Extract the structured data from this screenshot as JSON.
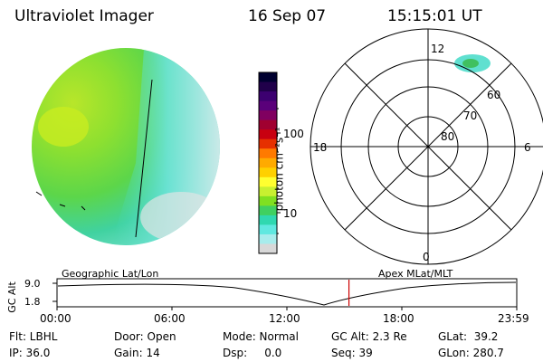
{
  "header": {
    "instrument": "Ultraviolet Imager",
    "date": "16 Sep 07",
    "time": "15:15:01 UT"
  },
  "colorbar": {
    "unit_label": "photon cm⁻²s⁻¹",
    "ticks": [
      "100",
      "10"
    ],
    "colors": [
      "#000030",
      "#20004a",
      "#3c0070",
      "#5a007a",
      "#800060",
      "#a00030",
      "#c80010",
      "#e63000",
      "#ff7a00",
      "#ffaa00",
      "#ffd000",
      "#ffff30",
      "#c8f030",
      "#80e020",
      "#40d060",
      "#30d8b0",
      "#60e8e0",
      "#a8ecec",
      "#d8d8d8"
    ]
  },
  "polar_plot": {
    "mlt_labels": {
      "top": "12",
      "left": "18",
      "right": "6",
      "bottom": "0"
    },
    "lat_labels": [
      "60",
      "70",
      "80"
    ]
  },
  "timeline": {
    "left_title": "Geographic Lat/Lon",
    "right_title": "Apex MLat/MLT",
    "axis_label": "GC Alt",
    "y_ticks": [
      "9.0",
      "1.8"
    ],
    "x_ticks": [
      "00:00",
      "06:00",
      "12:00",
      "18:00",
      "23:59"
    ],
    "marker_time_fraction": 0.635,
    "marker_color": "#cc0000"
  },
  "status": {
    "flt": "Flt: LBHL",
    "ip": "IP: 36.0",
    "door": "Door: Open",
    "gain": "Gain: 14",
    "mode": "Mode: Normal",
    "dsp": "Dsp:     0.0",
    "gc_alt": "GC Alt: 2.3 Re",
    "seq": "Seq: 39",
    "glat": "GLat:  39.2",
    "glon": "GLon: 280.7"
  }
}
